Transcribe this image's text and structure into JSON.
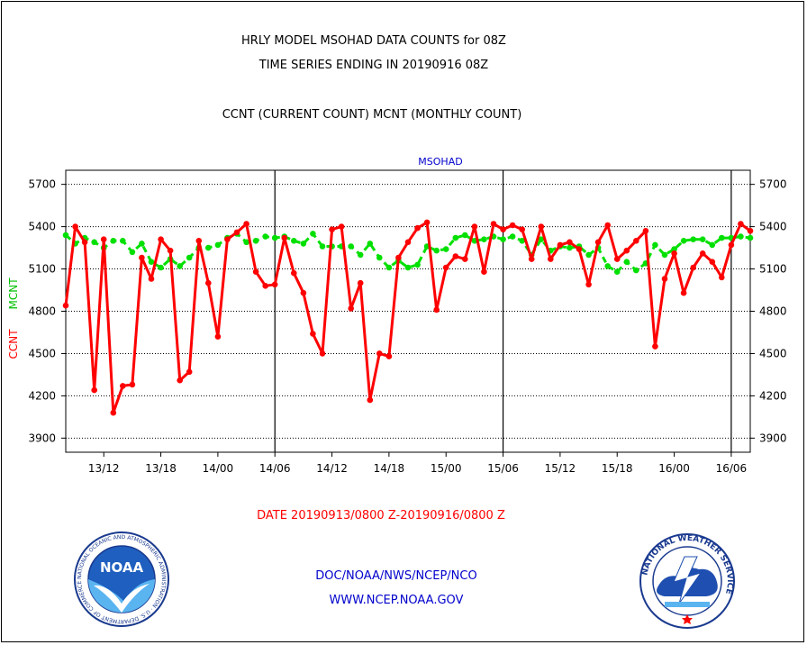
{
  "titles": {
    "line1": "HRLY MODEL MSOHAD DATA COUNTS for 08Z",
    "line2": "TIME SERIES ENDING IN 20190916 08Z",
    "line3": "CCNT (CURRENT COUNT) MCNT (MONTHLY COUNT)"
  },
  "date_range": "DATE 20190913/0800 Z-20190916/0800 Z",
  "footer": {
    "org": "DOC/NOAA/NWS/NCEP/NCO",
    "url": "WWW.NCEP.NOAA.GOV"
  },
  "logos": {
    "left": {
      "icon": "noaa-logo",
      "text": "NOAA",
      "ring_text": "NATIONAL OCEANIC AND ATMOSPHERIC ADMINISTRATION · U.S. DEPARTMENT OF COMMERCE"
    },
    "right": {
      "icon": "nws-logo",
      "ring_text": "NATIONAL WEATHER SERVICE"
    }
  },
  "chart_data": {
    "type": "line",
    "subtitle": "MSOHAD",
    "ylabel_ccnt": "CCNT",
    "ylabel_mcnt": "MCNT",
    "ylim": [
      3800,
      5800
    ],
    "yticks": [
      3900,
      4200,
      4500,
      4800,
      5100,
      5400,
      5700
    ],
    "xticks": [
      {
        "label": "13/12",
        "x": 4
      },
      {
        "label": "13/18",
        "x": 10
      },
      {
        "label": "14/00",
        "x": 16
      },
      {
        "label": "14/06",
        "x": 22
      },
      {
        "label": "14/12",
        "x": 28
      },
      {
        "label": "14/18",
        "x": 34
      },
      {
        "label": "15/00",
        "x": 40
      },
      {
        "label": "15/06",
        "x": 46
      },
      {
        "label": "15/12",
        "x": 52
      },
      {
        "label": "15/18",
        "x": 58
      },
      {
        "label": "16/00",
        "x": 64
      },
      {
        "label": "16/06",
        "x": 70
      }
    ],
    "xlim": [
      0,
      72
    ],
    "day_dividers": [
      22,
      46,
      70
    ],
    "grid": true,
    "colors": {
      "ccnt": "#ff0000",
      "mcnt": "#00e000",
      "subtitle": "#0000cc"
    },
    "series": [
      {
        "name": "CCNT",
        "color": "#ff0000",
        "style": "solid",
        "values": [
          4840,
          5400,
          5290,
          4240,
          5310,
          4080,
          4270,
          4280,
          5180,
          5030,
          5310,
          5230,
          4310,
          4370,
          5300,
          5000,
          4620,
          5310,
          5360,
          5420,
          5080,
          4980,
          4990,
          5320,
          5070,
          4930,
          4640,
          4500,
          5380,
          5400,
          4820,
          5000,
          4170,
          4500,
          4480,
          5180,
          5290,
          5390,
          5430,
          4810,
          5110,
          5190,
          5170,
          5400,
          5080,
          5420,
          5380,
          5410,
          5380,
          5170,
          5400,
          5170,
          5270,
          5290,
          5240,
          4990,
          5290,
          5410,
          5170,
          5230,
          5300,
          5370,
          4550,
          5030,
          5210,
          4930,
          5110,
          5210,
          5150,
          5040,
          5270,
          5420,
          5370
        ]
      },
      {
        "name": "MCNT",
        "color": "#00e000",
        "style": "dashed",
        "values": [
          5340,
          5280,
          5320,
          5290,
          5250,
          5300,
          5300,
          5220,
          5280,
          5150,
          5110,
          5170,
          5120,
          5180,
          5250,
          5250,
          5270,
          5320,
          5350,
          5290,
          5300,
          5330,
          5320,
          5330,
          5300,
          5280,
          5350,
          5260,
          5260,
          5260,
          5260,
          5200,
          5280,
          5180,
          5110,
          5160,
          5110,
          5130,
          5260,
          5230,
          5240,
          5320,
          5340,
          5300,
          5310,
          5330,
          5310,
          5330,
          5300,
          5200,
          5310,
          5230,
          5260,
          5250,
          5260,
          5200,
          5250,
          5120,
          5080,
          5150,
          5090,
          5140,
          5270,
          5200,
          5240,
          5300,
          5310,
          5310,
          5270,
          5320,
          5320,
          5330,
          5320
        ]
      }
    ]
  }
}
